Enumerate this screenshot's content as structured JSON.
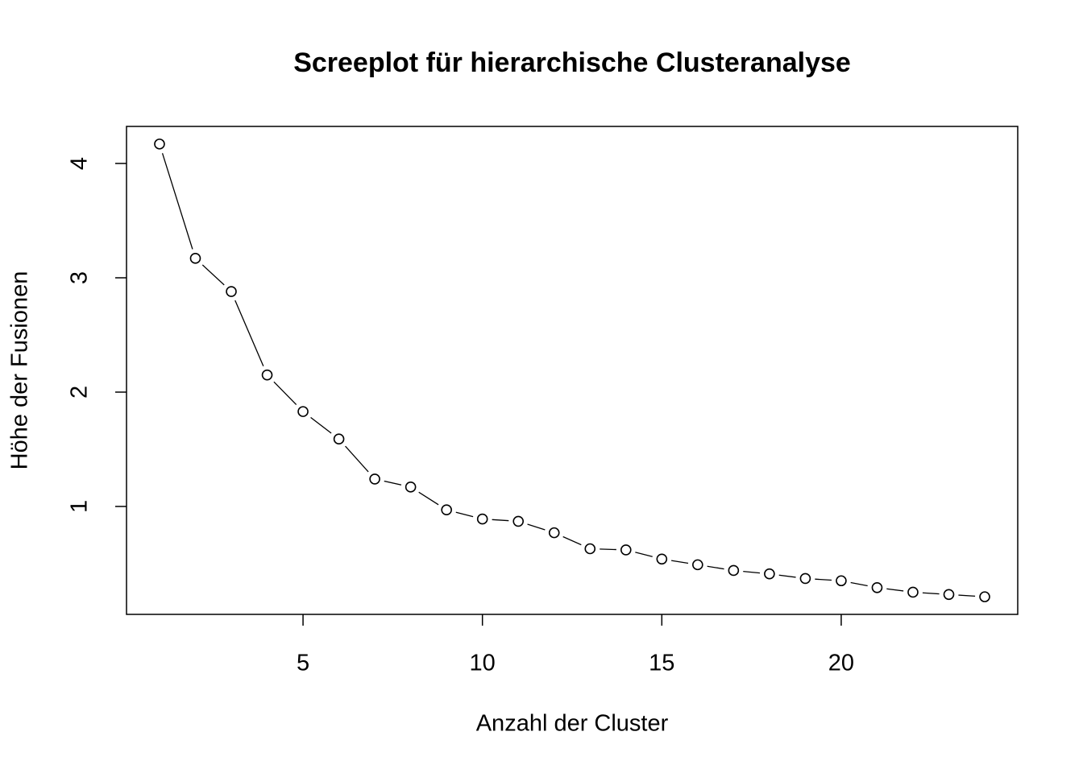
{
  "chart_data": {
    "type": "line",
    "title": "Screeplot für hierarchische Clusteranalyse",
    "x_label": "Anzahl der Cluster",
    "y_label": "Höhe der Fusionen",
    "x": [
      1,
      2,
      3,
      4,
      5,
      6,
      7,
      8,
      9,
      10,
      11,
      12,
      13,
      14,
      15,
      16,
      17,
      18,
      19,
      20,
      21,
      22,
      23,
      24
    ],
    "series": [
      {
        "color": "#000000",
        "values": [
          4.17,
          3.17,
          2.88,
          2.15,
          1.83,
          1.59,
          1.24,
          1.17,
          0.97,
          0.89,
          0.87,
          0.77,
          0.63,
          0.62,
          0.54,
          0.49,
          0.44,
          0.41,
          0.37,
          0.35,
          0.29,
          0.25,
          0.23,
          0.21
        ]
      }
    ],
    "xlim": [
      0.08,
      24.92
    ],
    "xticks": [
      5,
      10,
      15,
      20
    ],
    "ylim": [
      0.056,
      4.324
    ],
    "yticks": [
      1,
      2,
      3,
      4
    ]
  }
}
